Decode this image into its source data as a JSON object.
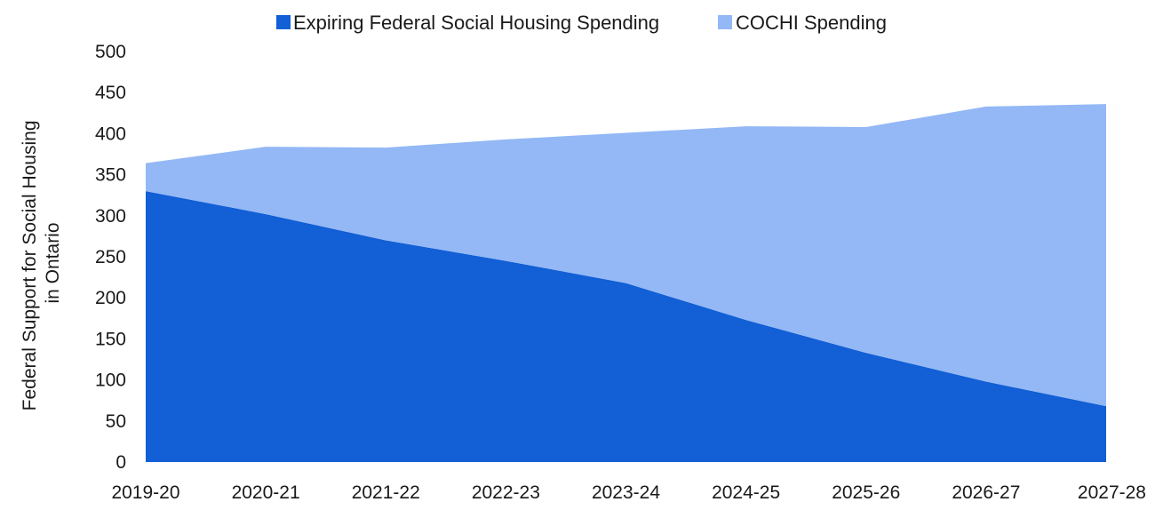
{
  "chart_data": {
    "type": "area",
    "stacked": true,
    "categories": [
      "2019-20",
      "2020-21",
      "2021-22",
      "2022-23",
      "2023-24",
      "2024-25",
      "2025-26",
      "2026-27",
      "2027-28"
    ],
    "series": [
      {
        "name": "Expiring Federal Social Housing Spending",
        "color": "#125fd6",
        "values": [
          330,
          302,
          270,
          245,
          218,
          173,
          133,
          98,
          68
        ]
      },
      {
        "name": "COCHI Spending",
        "color": "#93b8f5",
        "values": [
          34,
          82,
          113,
          148,
          183,
          236,
          275,
          335,
          368
        ]
      }
    ],
    "ylabel_lines": [
      "Federal Support for Social Housing",
      "in Ontario"
    ],
    "ylim": [
      0,
      500
    ],
    "yticks": [
      0,
      50,
      100,
      150,
      200,
      250,
      300,
      350,
      400,
      450,
      500
    ],
    "grid": false,
    "legend_position": "top"
  }
}
